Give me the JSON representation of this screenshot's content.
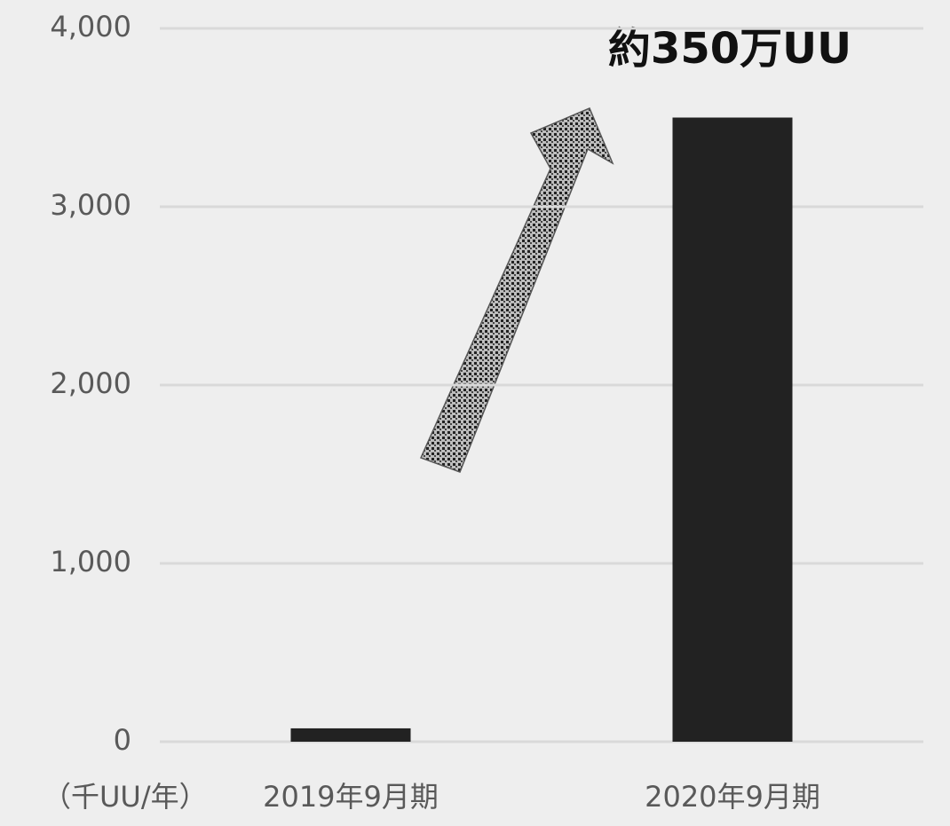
{
  "chart_data": {
    "type": "bar",
    "annotation": "約350万UU",
    "y_unit_label": "（千UU/年）",
    "categories": [
      "2019年9月期",
      "2020年9月期"
    ],
    "values": [
      75,
      3500
    ],
    "color": "#222222",
    "ylim": [
      0,
      4000
    ],
    "yticks": [
      0,
      {
        "value": 1000,
        "label": "1,000"
      },
      {
        "value": 2000,
        "label": "2,000"
      },
      {
        "value": 3000,
        "label": "3,000"
      },
      {
        "value": 4000,
        "label": "4,000"
      }
    ],
    "grid": true
  }
}
